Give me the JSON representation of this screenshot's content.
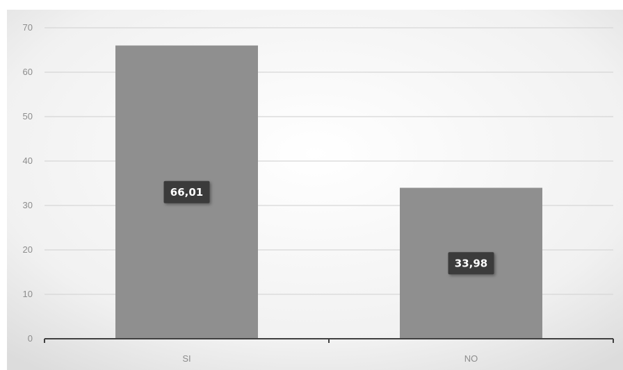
{
  "chart_data": {
    "type": "bar",
    "categories": [
      "SI",
      "NO"
    ],
    "values": [
      66.01,
      33.98
    ],
    "data_labels": [
      "66,01",
      "33,98"
    ],
    "title": "",
    "xlabel": "",
    "ylabel": "",
    "ylim": [
      0,
      70
    ],
    "yticks": [
      0,
      10,
      20,
      30,
      40,
      50,
      60,
      70
    ],
    "grid": true,
    "legend": "none"
  },
  "colors": {
    "bar": "#8f8f8f",
    "grid": "#d6d6d6",
    "axis": "#3f3f3f",
    "label_box": "#3b3b3b"
  }
}
